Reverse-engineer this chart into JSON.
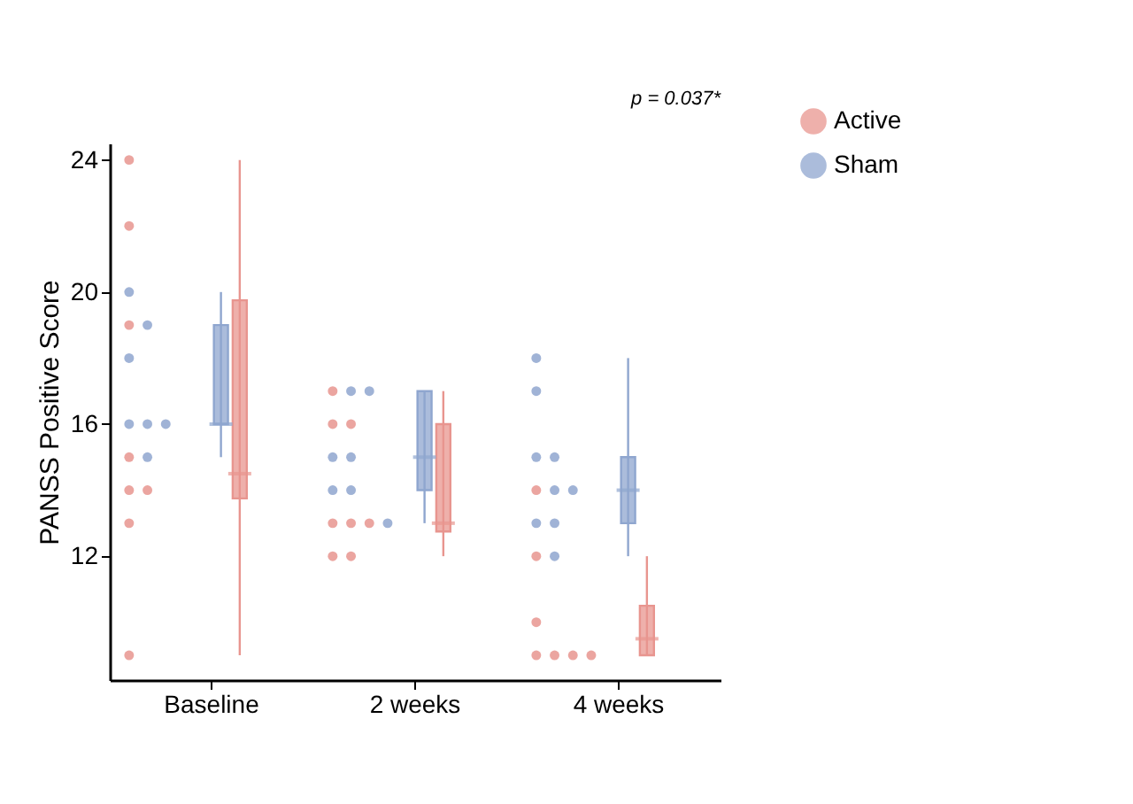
{
  "chart_data": {
    "type": "box",
    "ylabel": "PANSS Positive Score",
    "categories": [
      "Baseline",
      "2 weeks",
      "4 weeks"
    ],
    "ylim": [
      8.25,
      24.5
    ],
    "yticks": [
      12,
      16,
      20,
      24
    ],
    "grid": false,
    "legend": "top right",
    "annotations": [
      "p = 0.037*"
    ],
    "series": [
      {
        "name": "Active",
        "color": "#e8958f",
        "boxes": [
          {
            "low": 9,
            "q1": 13.75,
            "median": 14.5,
            "q3": 19.75,
            "high": 24
          },
          {
            "low": 12,
            "q1": 12.75,
            "median": 13,
            "q3": 16,
            "high": 17
          },
          {
            "low": 9,
            "q1": 9,
            "median": 9.5,
            "q3": 10.5,
            "high": 12
          }
        ]
      },
      {
        "name": "Sham",
        "color": "#8fa6cf",
        "boxes": [
          {
            "low": 15,
            "q1": 16,
            "median": 16,
            "q3": 19,
            "high": 20
          },
          {
            "low": 13,
            "q1": 14,
            "median": 15,
            "q3": 17,
            "high": 17
          },
          {
            "low": 12,
            "q1": 13,
            "median": 14,
            "q3": 15,
            "high": 18
          }
        ]
      },
      {
        "type": "scatter",
        "color": "#e8958f",
        "x": [
          "Baseline",
          "Baseline",
          "Baseline",
          "Baseline",
          "Baseline",
          "Baseline",
          "Baseline",
          "Baseline",
          "2 weeks",
          "2 weeks",
          "2 weeks",
          "2 weeks",
          "2 weeks",
          "2 weeks",
          "2 weeks",
          "2 weeks",
          "4 weeks",
          "4 weeks",
          "4 weeks",
          "4 weeks",
          "4 weeks",
          "4 weeks",
          "4 weeks"
        ],
        "values": [
          24,
          22,
          19,
          15,
          14,
          14,
          13,
          9,
          17,
          16,
          16,
          13,
          13,
          13,
          12,
          12,
          14,
          12,
          10,
          9,
          9,
          9,
          9
        ]
      },
      {
        "type": "scatter",
        "color": "#8fa6cf",
        "x": [
          "Baseline",
          "Baseline",
          "Baseline",
          "Baseline",
          "Baseline",
          "Baseline",
          "Baseline",
          "2 weeks",
          "2 weeks",
          "2 weeks",
          "2 weeks",
          "2 weeks",
          "2 weeks",
          "2 weeks",
          "4 weeks",
          "4 weeks",
          "4 weeks",
          "4 weeks",
          "4 weeks",
          "4 weeks",
          "4 weeks",
          "4 weeks",
          "4 weeks"
        ],
        "values": [
          20,
          19,
          18,
          16,
          16,
          16,
          15,
          17,
          17,
          15,
          15,
          14,
          14,
          13,
          18,
          17,
          15,
          15,
          14,
          14,
          13,
          13,
          12
        ]
      }
    ]
  }
}
